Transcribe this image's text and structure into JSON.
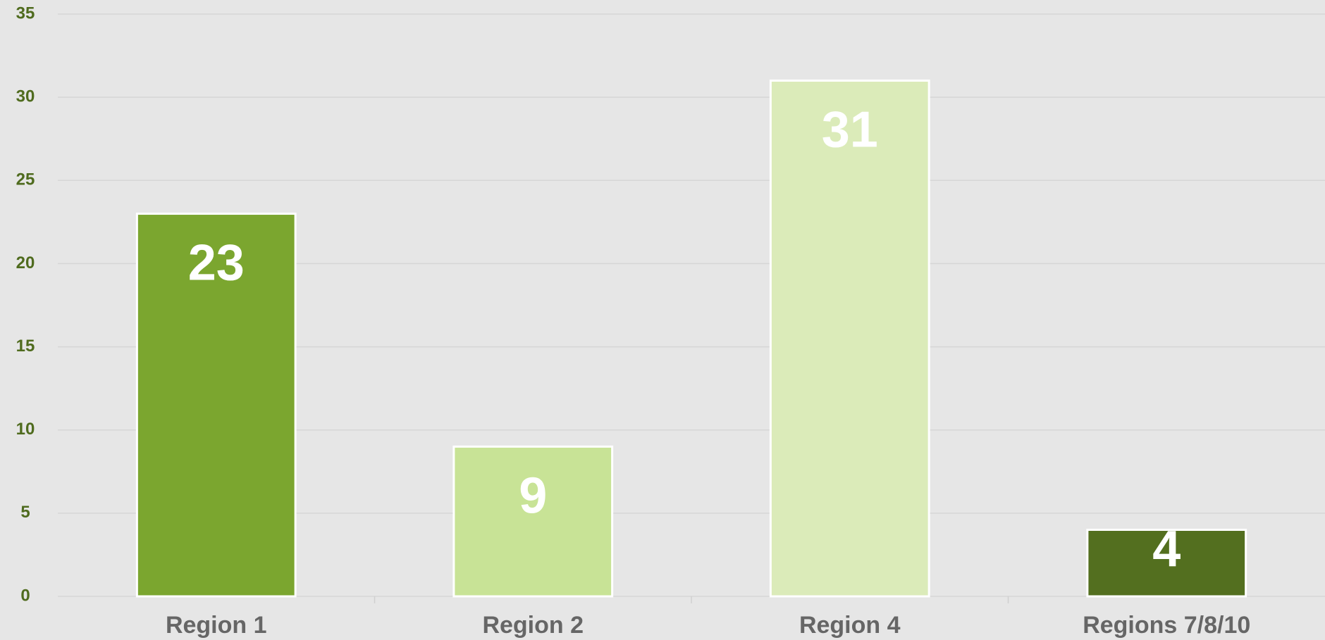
{
  "chart_data": {
    "type": "bar",
    "categories": [
      "Region 1",
      "Region 2",
      "Region 4",
      "Regions 7/8/10"
    ],
    "values": [
      23,
      9,
      31,
      4
    ],
    "colors": [
      "#7ba62f",
      "#c8e396",
      "#dbebb9",
      "#536f1f"
    ],
    "ylim": [
      0,
      35
    ],
    "yticks": [
      0,
      5,
      10,
      15,
      20,
      25,
      30,
      35
    ],
    "grid": true
  }
}
